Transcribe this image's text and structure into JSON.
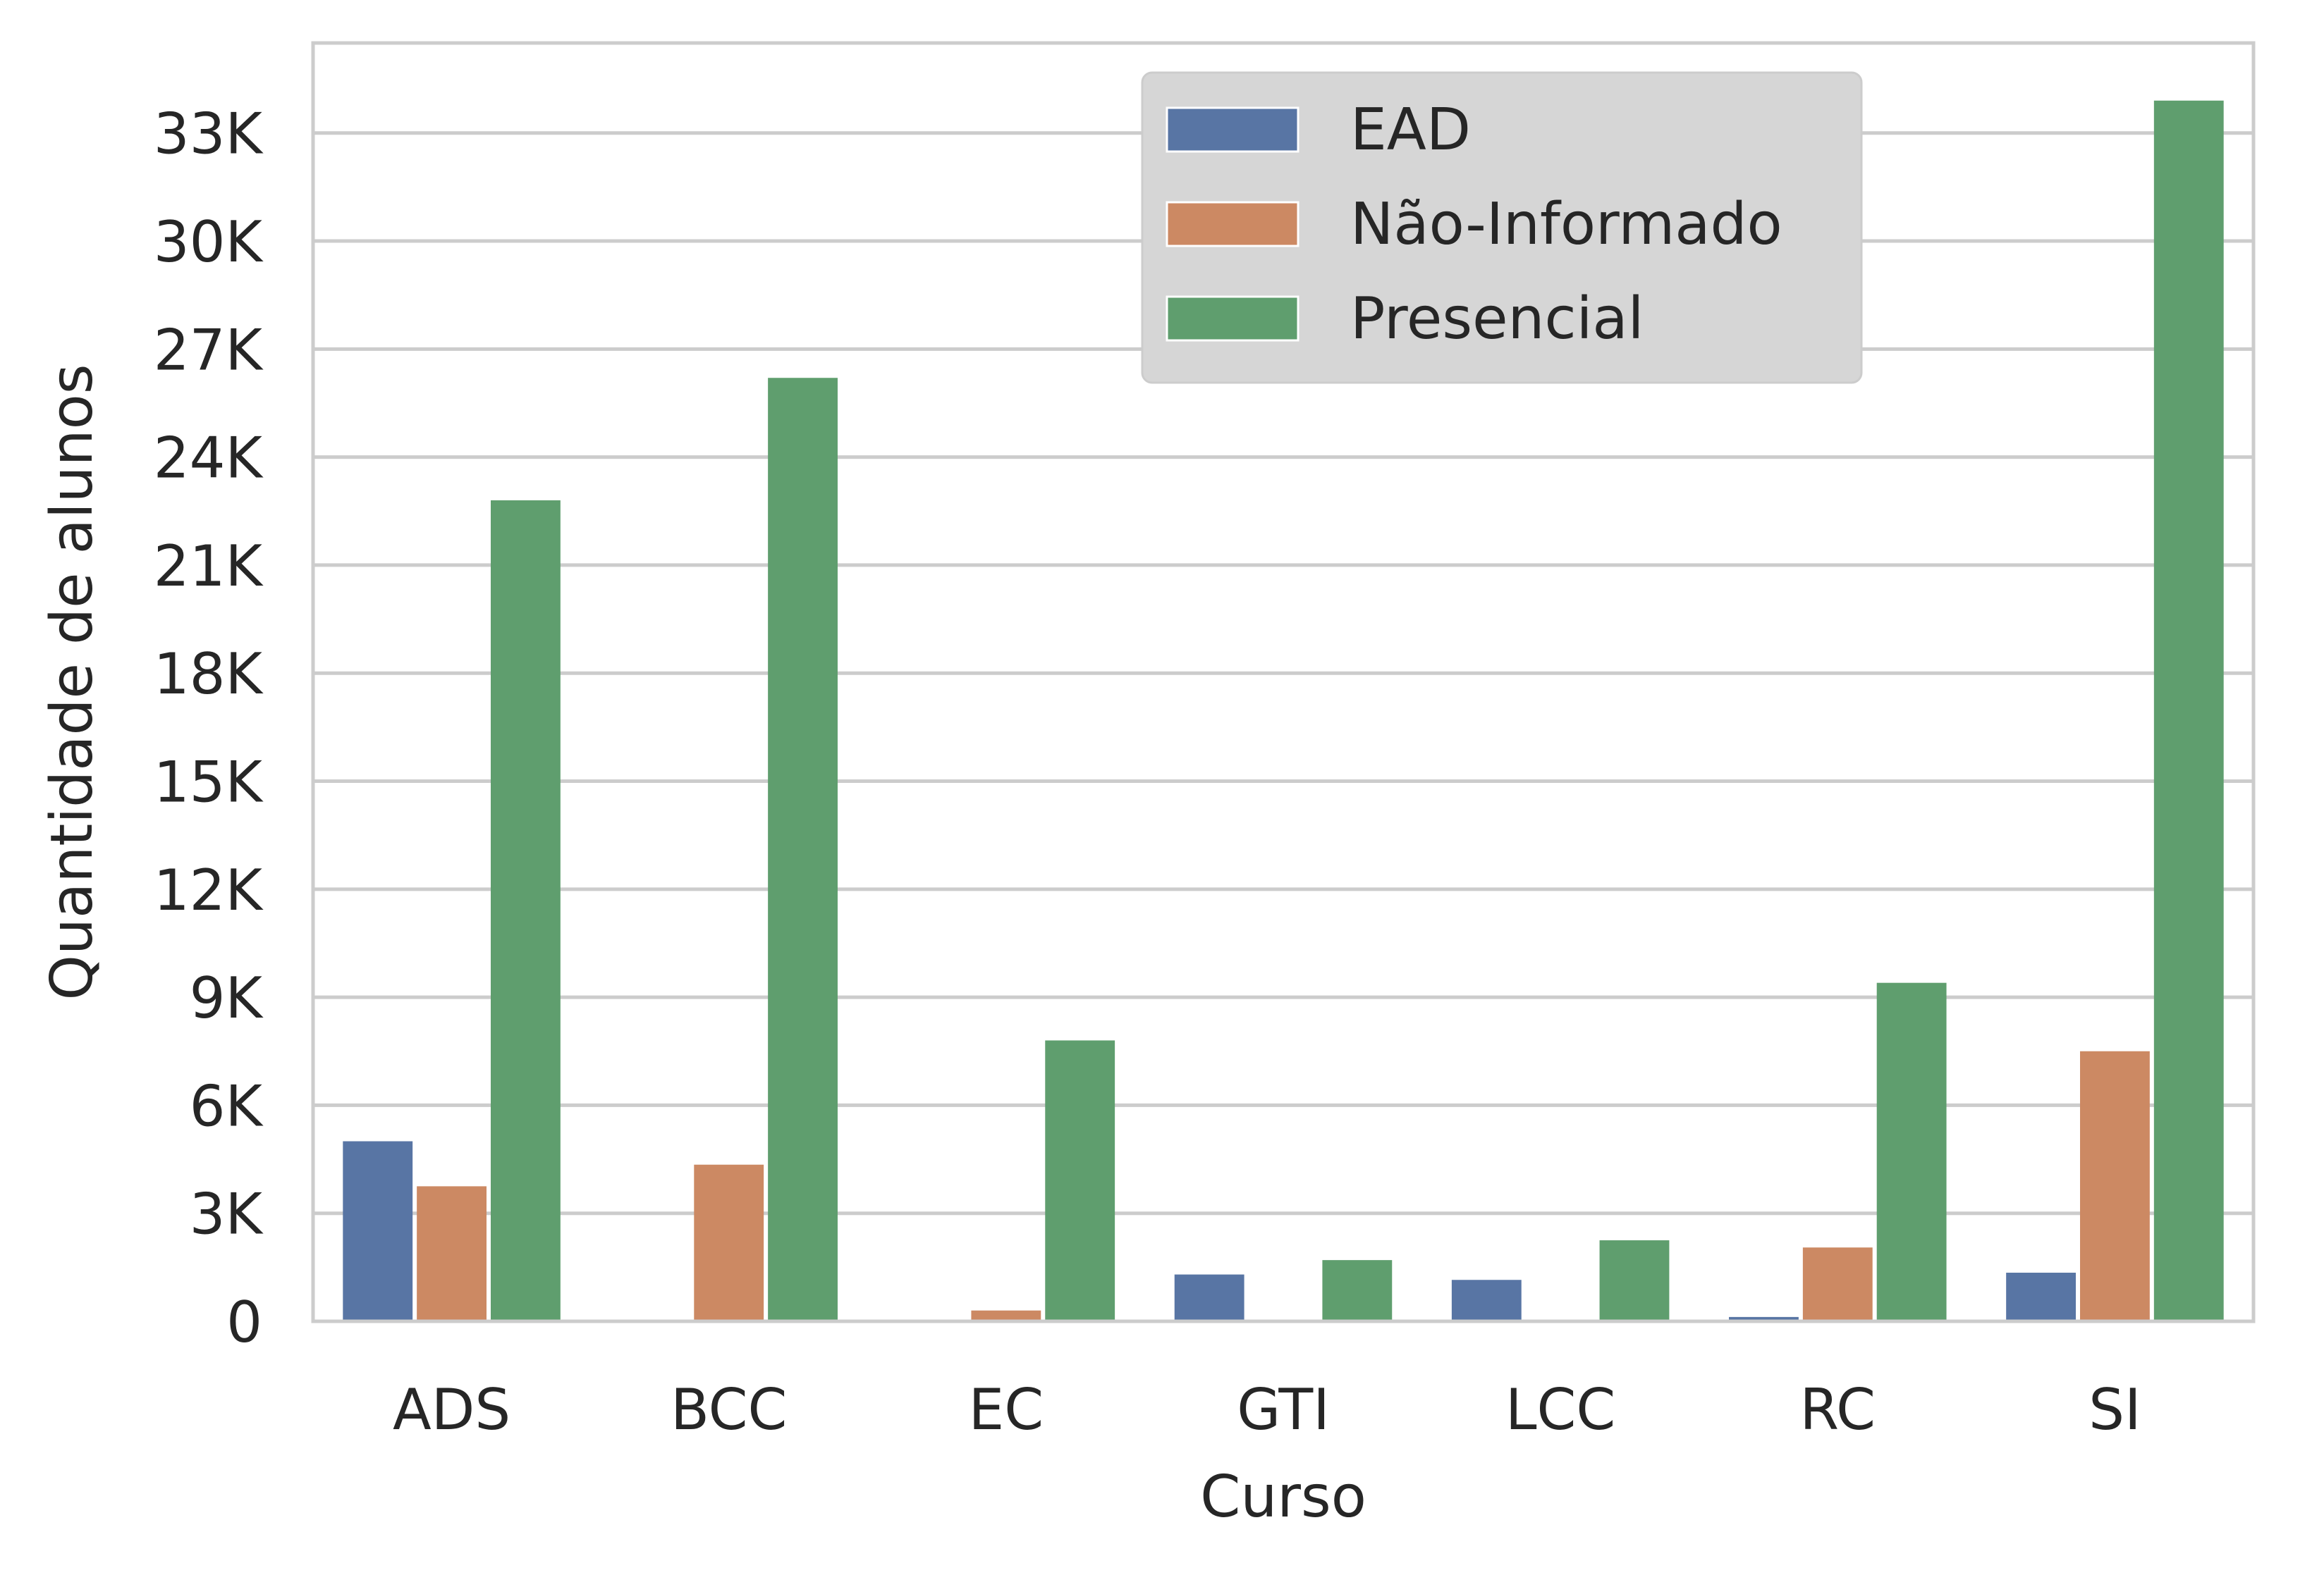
{
  "chart_data": {
    "type": "bar",
    "title": "",
    "xlabel": "Curso",
    "ylabel": "Quantidade de alunos",
    "categories": [
      "ADS",
      "BCC",
      "EC",
      "GTI",
      "LCC",
      "RC",
      "SI"
    ],
    "series": [
      {
        "name": "EAD",
        "color": "#5875a4",
        "values": [
          5000,
          0,
          0,
          1300,
          1150,
          120,
          1350
        ]
      },
      {
        "name": "Não-Informado",
        "color": "#cc8963",
        "values": [
          3750,
          4350,
          300,
          0,
          0,
          2050,
          7500
        ]
      },
      {
        "name": "Presencial",
        "color": "#5f9e6e",
        "values": [
          22800,
          26200,
          7800,
          1700,
          2250,
          9400,
          33900
        ]
      }
    ],
    "ylim": [
      0,
      35500
    ],
    "yticks": [
      0,
      3000,
      6000,
      9000,
      12000,
      15000,
      18000,
      21000,
      24000,
      27000,
      30000,
      33000
    ],
    "ytick_labels": [
      "0",
      "3K",
      "6K",
      "9K",
      "12K",
      "15K",
      "18K",
      "21K",
      "24K",
      "27K",
      "30K",
      "33K"
    ],
    "grid": "y",
    "legend_position": "top-center"
  }
}
